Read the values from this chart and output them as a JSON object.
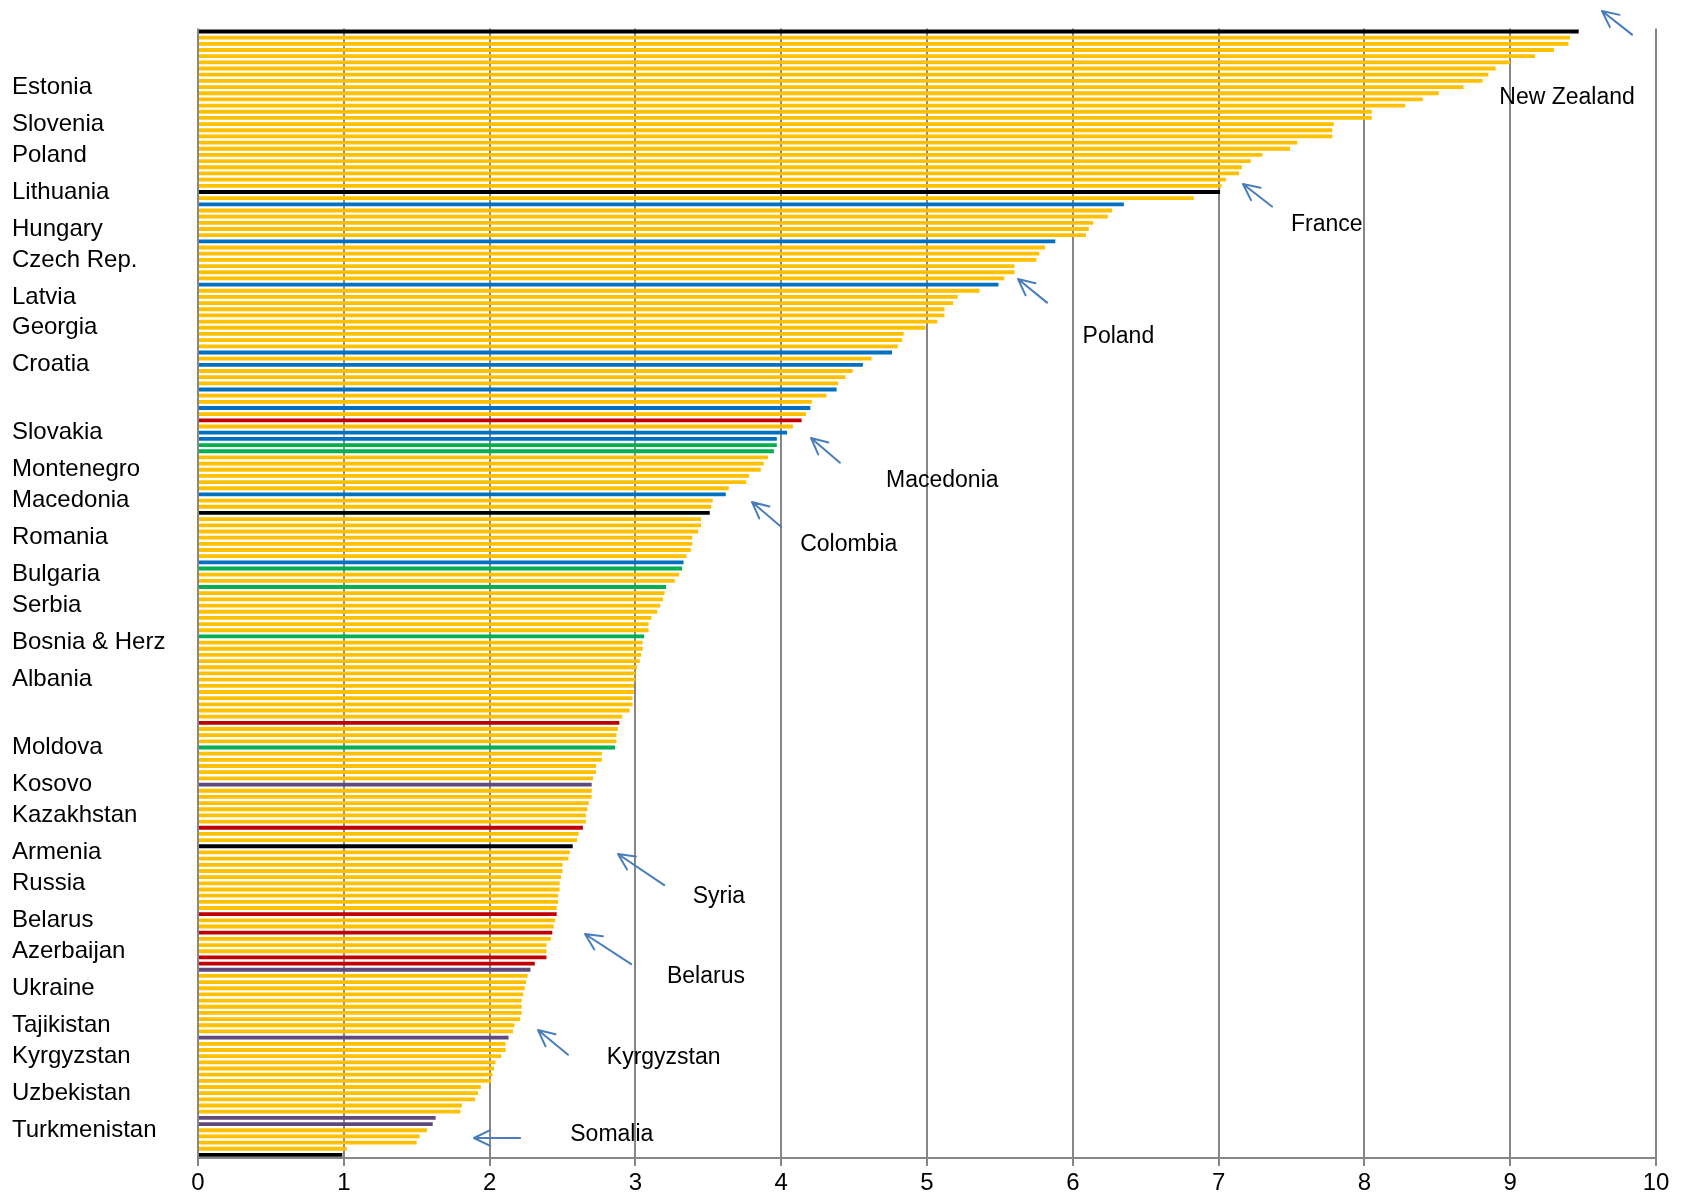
{
  "chart_data": {
    "type": "bar",
    "orientation": "horizontal",
    "categories": [
      null,
      null,
      null,
      null,
      null,
      null,
      null,
      null,
      null,
      "Estonia",
      null,
      null,
      null,
      null,
      null,
      "Slovenia",
      null,
      null,
      null,
      null,
      "Poland",
      null,
      null,
      null,
      null,
      null,
      "Lithuania",
      null,
      null,
      null,
      null,
      null,
      "Hungary",
      null,
      null,
      null,
      null,
      "Czech Rep.",
      null,
      null,
      null,
      null,
      null,
      "Latvia",
      null,
      null,
      null,
      null,
      "Georgia",
      null,
      null,
      null,
      null,
      null,
      "Croatia",
      null,
      null,
      null,
      null,
      null,
      null,
      null,
      null,
      null,
      null,
      "Slovakia",
      null,
      null,
      null,
      null,
      null,
      "Montenegro",
      null,
      null,
      null,
      null,
      "Macedonia",
      null,
      null,
      null,
      null,
      null,
      "Romania",
      null,
      null,
      null,
      null,
      null,
      "Bulgaria",
      null,
      null,
      null,
      null,
      "Serbia",
      null,
      null,
      null,
      null,
      null,
      "Bosnia & Herz",
      null,
      null,
      null,
      null,
      null,
      "Albania",
      null,
      null,
      null,
      null,
      null,
      null,
      null,
      null,
      null,
      null,
      "Moldova",
      null,
      null,
      null,
      null,
      null,
      "Kosovo",
      null,
      null,
      null,
      null,
      "Kazakhstan",
      null,
      null,
      null,
      null,
      null,
      "Armenia",
      null,
      null,
      null,
      null,
      "Russia",
      null,
      null,
      null,
      null,
      null,
      "Belarus",
      null,
      null,
      null,
      null,
      "Azerbaijan",
      null,
      null,
      null,
      null,
      null,
      "Ukraine",
      null,
      null,
      null,
      null,
      null,
      "Tajikistan",
      null,
      null,
      null,
      null,
      "Kyrgyzstan",
      null,
      null,
      null,
      null,
      null,
      "Uzbekistan",
      null,
      null,
      null,
      null,
      null,
      "Turkmenistan",
      null,
      null,
      null,
      null
    ],
    "values": [
      9.47,
      9.41,
      9.4,
      9.3,
      9.17,
      9.0,
      8.9,
      8.85,
      8.81,
      8.68,
      8.51,
      8.4,
      8.28,
      8.05,
      8.05,
      7.79,
      7.78,
      7.78,
      7.54,
      7.49,
      7.3,
      7.22,
      7.16,
      7.14,
      7.05,
      7.02,
      7.01,
      6.83,
      6.35,
      6.27,
      6.24,
      6.14,
      6.11,
      6.09,
      5.88,
      5.81,
      5.77,
      5.75,
      5.6,
      5.6,
      5.53,
      5.49,
      5.36,
      5.21,
      5.18,
      5.12,
      5.12,
      5.07,
      4.99,
      4.84,
      4.83,
      4.8,
      4.76,
      4.62,
      4.56,
      4.49,
      4.44,
      4.39,
      4.38,
      4.31,
      4.21,
      4.2,
      4.17,
      4.14,
      4.08,
      4.04,
      3.97,
      3.97,
      3.95,
      3.91,
      3.88,
      3.86,
      3.78,
      3.76,
      3.64,
      3.62,
      3.53,
      3.52,
      3.51,
      3.45,
      3.45,
      3.43,
      3.39,
      3.39,
      3.38,
      3.35,
      3.33,
      3.32,
      3.3,
      3.27,
      3.21,
      3.2,
      3.19,
      3.17,
      3.15,
      3.11,
      3.09,
      3.09,
      3.06,
      3.05,
      3.05,
      3.04,
      3.03,
      3.01,
      3.0,
      3.0,
      2.99,
      2.99,
      2.98,
      2.98,
      2.96,
      2.91,
      2.89,
      2.88,
      2.87,
      2.87,
      2.86,
      2.77,
      2.77,
      2.73,
      2.73,
      2.71,
      2.7,
      2.7,
      2.7,
      2.68,
      2.67,
      2.66,
      2.66,
      2.64,
      2.61,
      2.6,
      2.57,
      2.55,
      2.54,
      2.5,
      2.5,
      2.49,
      2.48,
      2.48,
      2.47,
      2.47,
      2.46,
      2.46,
      2.45,
      2.44,
      2.43,
      2.42,
      2.39,
      2.39,
      2.39,
      2.31,
      2.28,
      2.26,
      2.25,
      2.24,
      2.23,
      2.22,
      2.22,
      2.22,
      2.21,
      2.17,
      2.16,
      2.13,
      2.11,
      2.11,
      2.08,
      2.04,
      2.03,
      2.02,
      2.01,
      1.94,
      1.92,
      1.9,
      1.81,
      1.8,
      1.63,
      1.61,
      1.57,
      1.52,
      1.5,
      1.02,
      0.99
    ],
    "colors": [
      "#000000",
      "#ffc000",
      "#ffc000",
      "#ffc000",
      "#ffc000",
      "#ffc000",
      "#ffc000",
      "#ffc000",
      "#ffc000",
      "#ffc000",
      "#ffc000",
      "#ffc000",
      "#ffc000",
      "#ffc000",
      "#ffc000",
      "#ffc000",
      "#ffc000",
      "#ffc000",
      "#ffc000",
      "#ffc000",
      "#ffc000",
      "#ffc000",
      "#ffc000",
      "#ffc000",
      "#ffc000",
      "#ffc000",
      "#000000",
      "#ffc000",
      "#0070c0",
      "#ffc000",
      "#ffc000",
      "#ffc000",
      "#ffc000",
      "#ffc000",
      "#0070c0",
      "#ffc000",
      "#ffc000",
      "#ffc000",
      "#ffc000",
      "#ffc000",
      "#ffc000",
      "#0070c0",
      "#ffc000",
      "#ffc000",
      "#ffc000",
      "#ffc000",
      "#ffc000",
      "#ffc000",
      "#ffc000",
      "#ffc000",
      "#ffc000",
      "#ffc000",
      "#0070c0",
      "#ffc000",
      "#0070c0",
      "#ffc000",
      "#ffc000",
      "#ffc000",
      "#0070c0",
      "#ffc000",
      "#ffc000",
      "#0070c0",
      "#ffc000",
      "#c00000",
      "#ffc000",
      "#0070c0",
      "#0070c0",
      "#00b050",
      "#00b050",
      "#ffc000",
      "#ffc000",
      "#ffc000",
      "#ffc000",
      "#ffc000",
      "#ffc000",
      "#0070c0",
      "#ffc000",
      "#ffc000",
      "#000000",
      "#ffc000",
      "#ffc000",
      "#ffc000",
      "#ffc000",
      "#ffc000",
      "#ffc000",
      "#ffc000",
      "#0070c0",
      "#00b050",
      "#ffc000",
      "#ffc000",
      "#00b050",
      "#ffc000",
      "#ffc000",
      "#ffc000",
      "#ffc000",
      "#ffc000",
      "#ffc000",
      "#ffc000",
      "#00b050",
      "#ffc000",
      "#ffc000",
      "#ffc000",
      "#ffc000",
      "#ffc000",
      "#ffc000",
      "#ffc000",
      "#ffc000",
      "#ffc000",
      "#ffc000",
      "#ffc000",
      "#ffc000",
      "#ffc000",
      "#c00000",
      "#ffc000",
      "#ffc000",
      "#ffc000",
      "#00b050",
      "#ffc000",
      "#ffc000",
      "#ffc000",
      "#ffc000",
      "#ffc000",
      "#604a7b",
      "#ffc000",
      "#ffc000",
      "#ffc000",
      "#ffc000",
      "#ffc000",
      "#ffc000",
      "#c00000",
      "#ffc000",
      "#ffc000",
      "#000000",
      "#ffc000",
      "#ffc000",
      "#ffc000",
      "#ffc000",
      "#ffc000",
      "#ffc000",
      "#ffc000",
      "#ffc000",
      "#ffc000",
      "#ffc000",
      "#c00000",
      "#ffc000",
      "#ffc000",
      "#c00000",
      "#ffc000",
      "#ffc000",
      "#ffc000",
      "#c00000",
      "#c00000",
      "#604a7b",
      "#ffc000",
      "#ffc000",
      "#ffc000",
      "#ffc000",
      "#ffc000",
      "#ffc000",
      "#ffc000",
      "#ffc000",
      "#ffc000",
      "#ffc000",
      "#604a7b",
      "#ffc000",
      "#ffc000",
      "#ffc000",
      "#ffc000",
      "#ffc000",
      "#ffc000",
      "#ffc000",
      "#ffc000",
      "#ffc000",
      "#ffc000",
      "#ffc000",
      "#ffc000",
      "#604a7b",
      "#604a7b",
      "#ffc000",
      "#ffc000",
      "#ffc000",
      "#ffc000",
      "#000000"
    ],
    "xlim": [
      0,
      10
    ],
    "xticks": [
      0,
      1,
      2,
      3,
      4,
      5,
      6,
      7,
      8,
      9,
      10
    ],
    "grid": "x",
    "annotations": [
      "New Zealand",
      "France",
      "Poland",
      "Macedonia",
      "Colombia",
      "Syria",
      "Belarus",
      "Kyrgyzstan",
      "Somalia"
    ]
  }
}
